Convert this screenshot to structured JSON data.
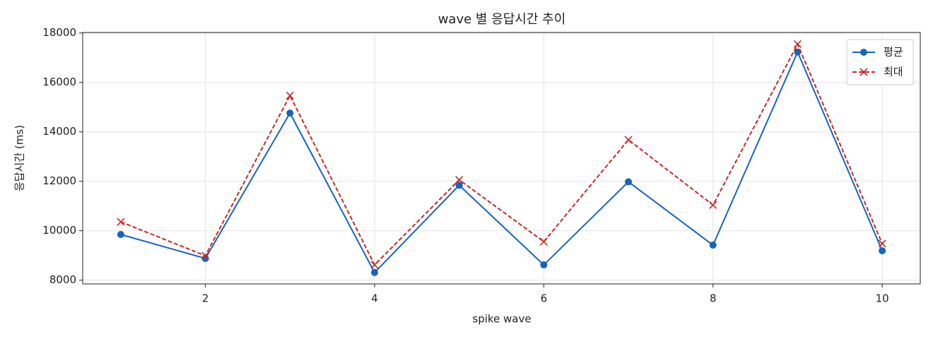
{
  "chart_data": {
    "type": "line",
    "title": "wave 별 응답시간 추이",
    "x_label": "spike wave",
    "y_label": "응답시간 (ms)",
    "x": [
      1,
      2,
      3,
      4,
      5,
      6,
      7,
      8,
      9,
      10
    ],
    "series": [
      {
        "name": "평균",
        "color": "#1565c0",
        "marker": "circle",
        "dash": false,
        "values": [
          9850,
          8880,
          14760,
          8310,
          11840,
          8620,
          11980,
          9420,
          17230,
          9190
        ]
      },
      {
        "name": "최대",
        "color": "#c62828",
        "marker": "x",
        "dash": true,
        "values": [
          10360,
          8990,
          15470,
          8620,
          12060,
          9560,
          13680,
          11040,
          17550,
          9480
        ]
      }
    ],
    "xlim": [
      0.55,
      10.45
    ],
    "ylim": [
      7850,
      18020
    ],
    "xticks": [
      2,
      4,
      6,
      8,
      10
    ],
    "yticks": [
      8000,
      10000,
      12000,
      14000,
      16000,
      18000
    ],
    "grid": true,
    "legend": "upper right"
  }
}
